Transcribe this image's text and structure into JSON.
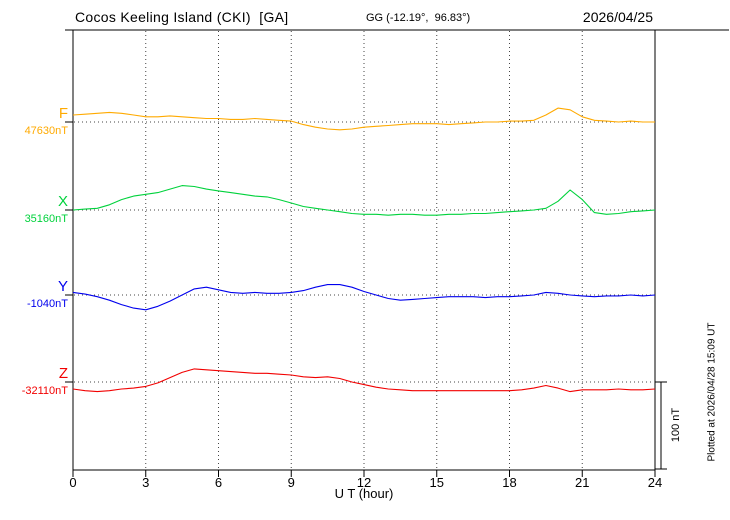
{
  "header": {
    "title": "Cocos Keeling Island (CKI)  [GA]",
    "gg_coords": "GG (-12.19°,  96.83°)",
    "date": "2026/04/25"
  },
  "footer": {
    "xlabel": "U T (hour)"
  },
  "scale_bar": {
    "label": "100 nT",
    "nT": 100
  },
  "plotted_at": "Plotted at 2026/04/28 15:09 UT",
  "chart_data": {
    "type": "line",
    "title": "Cocos Keeling Island (CKI) [GA] magnetogram",
    "x_unit": "UT hour",
    "x_range": [
      0,
      24
    ],
    "x_ticks": [
      0,
      3,
      6,
      9,
      12,
      15,
      18,
      21,
      24
    ],
    "x_step_hours": 0.5,
    "grid": "dotted vertical lines every 3 h; dotted horizontal baseline per trace",
    "scale_nT_per_division": 100,
    "series": [
      {
        "label": "F",
        "base_label": "47630nT",
        "base_nT": 47630,
        "color": "#ffaa00",
        "offsets_nT": [
          8,
          9,
          10,
          11,
          10,
          8,
          6,
          6,
          7,
          6,
          5,
          4,
          4,
          3,
          3,
          4,
          3,
          2,
          1,
          -3,
          -6,
          -8,
          -9,
          -8,
          -6,
          -5,
          -4,
          -3,
          -2,
          -2,
          -2,
          -3,
          -2,
          -1,
          0,
          0,
          1,
          1,
          2,
          8,
          16,
          14,
          6,
          2,
          1,
          0,
          1,
          0,
          0
        ]
      },
      {
        "label": "X",
        "base_label": "35160nT",
        "base_nT": 35160,
        "color": "#00d23c",
        "offsets_nT": [
          0,
          1,
          2,
          6,
          12,
          16,
          18,
          20,
          24,
          28,
          27,
          24,
          22,
          20,
          18,
          16,
          15,
          12,
          8,
          4,
          2,
          0,
          -2,
          -4,
          -5,
          -5,
          -6,
          -5,
          -5,
          -6,
          -6,
          -5,
          -5,
          -4,
          -4,
          -3,
          -2,
          -1,
          0,
          2,
          10,
          23,
          12,
          -3,
          -5,
          -4,
          -2,
          -1,
          0
        ]
      },
      {
        "label": "Y",
        "base_label": "-1040nT",
        "base_nT": -1040,
        "color": "#0000ee",
        "offsets_nT": [
          3,
          1,
          -2,
          -6,
          -11,
          -15,
          -17,
          -13,
          -7,
          0,
          7,
          9,
          6,
          3,
          2,
          3,
          2,
          2,
          3,
          5,
          9,
          12,
          12,
          9,
          4,
          0,
          -4,
          -6,
          -5,
          -4,
          -3,
          -2,
          -2,
          -2,
          -3,
          -2,
          -2,
          -1,
          0,
          3,
          2,
          0,
          -1,
          -2,
          -1,
          -1,
          0,
          -1,
          0
        ]
      },
      {
        "label": "Z",
        "base_label": "-32110nT",
        "base_nT": -32110,
        "color": "#f20000",
        "offsets_nT": [
          -8,
          -10,
          -11,
          -10,
          -8,
          -7,
          -5,
          -1,
          5,
          11,
          15,
          14,
          13,
          12,
          11,
          10,
          10,
          9,
          8,
          6,
          5,
          6,
          4,
          0,
          -3,
          -6,
          -8,
          -9,
          -10,
          -10,
          -10,
          -10,
          -10,
          -10,
          -10,
          -10,
          -10,
          -9,
          -7,
          -4,
          -7,
          -11,
          -9,
          -9,
          -9,
          -8,
          -9,
          -9,
          -8
        ]
      }
    ]
  }
}
